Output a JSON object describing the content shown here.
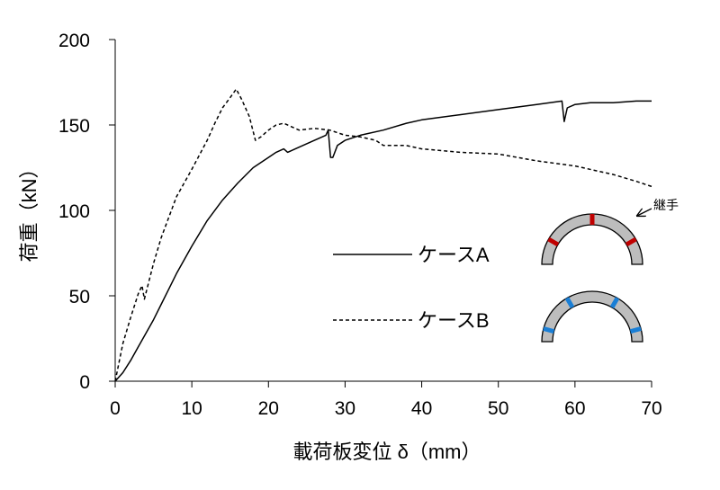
{
  "chart_data": {
    "type": "line",
    "title": "",
    "xlabel": "載荷板変位 δ（mm）",
    "ylabel": "荷重（kN）",
    "xlim": [
      0,
      70
    ],
    "ylim": [
      0,
      200
    ],
    "xticks": [
      0,
      10,
      20,
      30,
      40,
      50,
      60,
      70
    ],
    "yticks": [
      0,
      50,
      100,
      150,
      200
    ],
    "grid": false,
    "legend_position": "right",
    "series": [
      {
        "name": "ケースA",
        "line_style": "solid",
        "color": "#000000",
        "points": [
          [
            0,
            0
          ],
          [
            1,
            5
          ],
          [
            2,
            12
          ],
          [
            3,
            20
          ],
          [
            4,
            28
          ],
          [
            5,
            36
          ],
          [
            6,
            45
          ],
          [
            7,
            54
          ],
          [
            8,
            63
          ],
          [
            10,
            79
          ],
          [
            12,
            94
          ],
          [
            14,
            106
          ],
          [
            16,
            116
          ],
          [
            18,
            125
          ],
          [
            20,
            131
          ],
          [
            21,
            134
          ],
          [
            22,
            136
          ],
          [
            22.5,
            134
          ],
          [
            24,
            137
          ],
          [
            26,
            141
          ],
          [
            27.5,
            144
          ],
          [
            27.8,
            147
          ],
          [
            28.1,
            131
          ],
          [
            28.4,
            131
          ],
          [
            29,
            138
          ],
          [
            30,
            141
          ],
          [
            32,
            144
          ],
          [
            35,
            147
          ],
          [
            38,
            151
          ],
          [
            40,
            153
          ],
          [
            45,
            156
          ],
          [
            50,
            159
          ],
          [
            55,
            162
          ],
          [
            58.3,
            164
          ],
          [
            58.6,
            152
          ],
          [
            59,
            160
          ],
          [
            60,
            162
          ],
          [
            62,
            163
          ],
          [
            65,
            163
          ],
          [
            68,
            164
          ],
          [
            70,
            164
          ]
        ]
      },
      {
        "name": "ケースB",
        "line_style": "dashed",
        "color": "#000000",
        "points": [
          [
            0,
            0
          ],
          [
            1,
            22
          ],
          [
            2,
            37
          ],
          [
            3,
            51
          ],
          [
            3.5,
            56
          ],
          [
            3.8,
            48
          ],
          [
            4.2,
            55
          ],
          [
            5,
            69
          ],
          [
            6,
            84
          ],
          [
            7,
            96
          ],
          [
            8,
            108
          ],
          [
            10,
            124
          ],
          [
            12,
            141
          ],
          [
            13,
            151
          ],
          [
            14,
            160
          ],
          [
            15,
            166
          ],
          [
            15.8,
            171
          ],
          [
            16.5,
            165
          ],
          [
            17.5,
            155
          ],
          [
            18.3,
            141
          ],
          [
            19,
            143
          ],
          [
            20,
            147
          ],
          [
            21,
            150
          ],
          [
            22,
            151
          ],
          [
            24,
            147
          ],
          [
            26,
            148
          ],
          [
            28,
            147
          ],
          [
            30,
            144
          ],
          [
            32,
            143
          ],
          [
            34,
            141
          ],
          [
            35,
            138
          ],
          [
            38,
            138
          ],
          [
            40,
            136
          ],
          [
            45,
            134
          ],
          [
            50,
            133
          ],
          [
            55,
            129
          ],
          [
            60,
            126
          ],
          [
            65,
            121
          ],
          [
            68,
            117
          ],
          [
            70,
            114
          ]
        ]
      }
    ],
    "annotations": [
      {
        "text": "継手",
        "type": "arrow-callout"
      }
    ]
  },
  "legend_icons": {
    "segment_fill": "#bdbdbd",
    "case_a_joint_color": "#c00000",
    "case_b_joint_color": "#1a7fd6"
  }
}
